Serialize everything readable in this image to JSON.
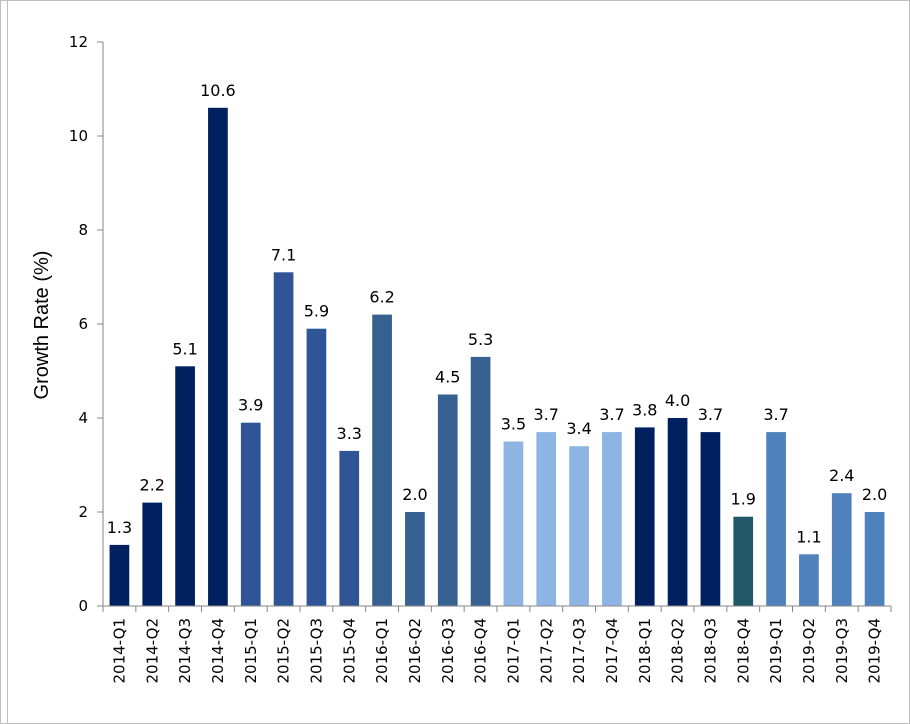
{
  "chart_data": {
    "type": "bar",
    "title": "",
    "xlabel": "",
    "ylabel": "Growth Rate (%)",
    "ylim": [
      0,
      12
    ],
    "yticks": [
      0,
      2,
      4,
      6,
      8,
      10,
      12
    ],
    "grid": false,
    "legend": "none",
    "categories": [
      "2014-Q1",
      "2014-Q2",
      "2014-Q3",
      "2014-Q4",
      "2015-Q1",
      "2015-Q2",
      "2015-Q3",
      "2015-Q4",
      "2016-Q1",
      "2016-Q2",
      "2016-Q3",
      "2016-Q4",
      "2017-Q1",
      "2017-Q2",
      "2017-Q3",
      "2017-Q4",
      "2018-Q1",
      "2018-Q2",
      "2018-Q3",
      "2018-Q4",
      "2019-Q1",
      "2019-Q2",
      "2019-Q3",
      "2019-Q4"
    ],
    "values": [
      1.3,
      2.2,
      5.1,
      10.6,
      3.9,
      7.1,
      5.9,
      3.3,
      6.2,
      2.0,
      4.5,
      5.3,
      3.5,
      3.7,
      3.4,
      3.7,
      3.8,
      4.0,
      3.7,
      1.9,
      3.7,
      1.1,
      2.4,
      2.0
    ],
    "labels": [
      "1.3",
      "2.2",
      "5.1",
      "10.6",
      "3.9",
      "7.1",
      "5.9",
      "3.3",
      "6.2",
      "2.0",
      "4.5",
      "5.3",
      "3.5",
      "3.7",
      "3.4",
      "3.7",
      "3.8",
      "4.0",
      "3.7",
      "1.9",
      "3.7",
      "1.1",
      "2.4",
      "2.0"
    ],
    "colors": [
      "#002060",
      "#002060",
      "#002060",
      "#002060",
      "#2f5597",
      "#2f5597",
      "#2f5597",
      "#2f5597",
      "#35608f",
      "#35608f",
      "#35608f",
      "#35608f",
      "#8db4e2",
      "#8db4e2",
      "#8db4e2",
      "#8db4e2",
      "#002060",
      "#002060",
      "#002060",
      "#215868",
      "#4f81bd",
      "#4f81bd",
      "#4f81bd",
      "#4f81bd"
    ]
  }
}
